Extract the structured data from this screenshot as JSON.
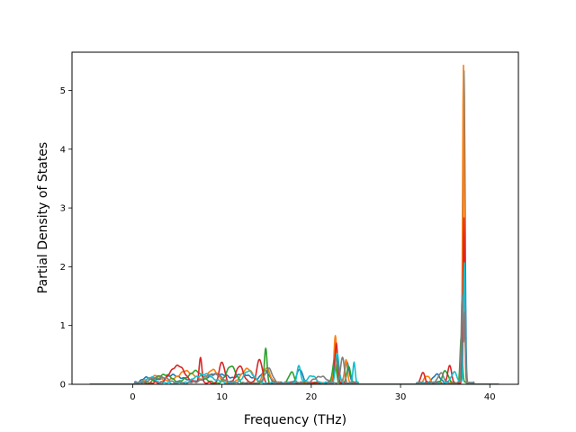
{
  "chart_data": {
    "type": "line",
    "title": "",
    "xlabel": "Frequency (THz)",
    "ylabel": "Partial Density of States",
    "xlim": [
      -6.8,
      43.2
    ],
    "ylim": [
      0,
      5.65
    ],
    "xticks": [
      0,
      10,
      20,
      30,
      40
    ],
    "yticks": [
      0,
      1,
      2,
      3,
      4,
      5
    ],
    "grid": false,
    "legend": "none",
    "series": [
      {
        "color": "#1f77b4",
        "peaks": [
          [
            1.5,
            0.08,
            0.6
          ],
          [
            4.5,
            0.13,
            1.2
          ],
          [
            9.5,
            0.16,
            1.2
          ],
          [
            12.5,
            0.15,
            0.8
          ],
          [
            14.8,
            0.2,
            0.5
          ],
          [
            18.7,
            0.25,
            0.3
          ],
          [
            22.8,
            0.55,
            0.25
          ],
          [
            24,
            0.35,
            0.25
          ],
          [
            34,
            0.15,
            0.4
          ],
          [
            37.1,
            5.3,
            0.12
          ]
        ]
      },
      {
        "color": "#ff7f0e",
        "peaks": [
          [
            2.5,
            0.12,
            0.8
          ],
          [
            6,
            0.2,
            1.0
          ],
          [
            9,
            0.22,
            0.6
          ],
          [
            12.8,
            0.25,
            0.6
          ],
          [
            15,
            0.25,
            0.4
          ],
          [
            22.7,
            0.82,
            0.15
          ],
          [
            23.9,
            0.4,
            0.15
          ],
          [
            33,
            0.12,
            0.3
          ],
          [
            37.05,
            5.4,
            0.1
          ]
        ]
      },
      {
        "color": "#2ca02c",
        "peaks": [
          [
            3.5,
            0.15,
            0.8
          ],
          [
            7,
            0.2,
            0.8
          ],
          [
            11,
            0.3,
            0.5
          ],
          [
            14.9,
            0.58,
            0.15
          ],
          [
            17.8,
            0.18,
            0.3
          ],
          [
            22.6,
            0.4,
            0.2
          ],
          [
            24.2,
            0.3,
            0.2
          ],
          [
            35,
            0.22,
            0.3
          ],
          [
            36.8,
            0.8,
            0.12
          ]
        ]
      },
      {
        "color": "#d62728",
        "peaks": [
          [
            5,
            0.3,
            0.8
          ],
          [
            7.6,
            0.45,
            0.15
          ],
          [
            10,
            0.35,
            0.3
          ],
          [
            12,
            0.3,
            0.4
          ],
          [
            14.2,
            0.4,
            0.3
          ],
          [
            22.8,
            0.7,
            0.15
          ],
          [
            32.5,
            0.18,
            0.2
          ],
          [
            35.5,
            0.3,
            0.2
          ],
          [
            37.1,
            2.8,
            0.1
          ]
        ]
      },
      {
        "color": "#17becf",
        "peaks": [
          [
            2,
            0.1,
            0.5
          ],
          [
            8,
            0.15,
            1.0
          ],
          [
            13,
            0.2,
            0.6
          ],
          [
            18.6,
            0.28,
            0.2
          ],
          [
            20,
            0.12,
            0.5
          ],
          [
            22.9,
            0.5,
            0.2
          ],
          [
            24.8,
            0.35,
            0.12
          ],
          [
            36,
            0.2,
            0.3
          ],
          [
            37.15,
            2.05,
            0.1
          ]
        ]
      },
      {
        "color": "#7f7f7f",
        "peaks": [
          [
            3,
            0.1,
            1.0
          ],
          [
            9,
            0.15,
            1.0
          ],
          [
            15.2,
            0.25,
            0.4
          ],
          [
            21,
            0.12,
            0.6
          ],
          [
            23.5,
            0.45,
            0.2
          ],
          [
            34.5,
            0.18,
            0.3
          ],
          [
            36.9,
            1.5,
            0.1
          ],
          [
            37.2,
            1.2,
            0.08
          ]
        ]
      }
    ]
  }
}
